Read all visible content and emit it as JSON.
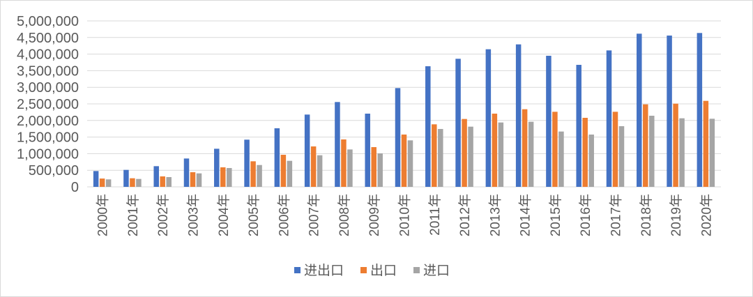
{
  "chart_data": {
    "type": "bar",
    "title": "",
    "xlabel": "",
    "ylabel": "",
    "ylim": [
      0,
      5000000
    ],
    "yticks": [
      0,
      500000,
      1000000,
      1500000,
      2000000,
      2500000,
      3000000,
      3500000,
      4000000,
      4500000,
      5000000
    ],
    "ytick_labels": [
      "0",
      "500,000",
      "1,000,000",
      "1,500,000",
      "2,000,000",
      "2,500,000",
      "3,000,000",
      "3,500,000",
      "4,000,000",
      "4,500,000",
      "5,000,000"
    ],
    "grid": true,
    "legend_position": "bottom",
    "categories": [
      "2000年",
      "2001年",
      "2002年",
      "2003年",
      "2004年",
      "2005年",
      "2006年",
      "2007年",
      "2008年",
      "2009年",
      "2010年",
      "2011年",
      "2012年",
      "2013年",
      "2014年",
      "2015年",
      "2016年",
      "2017年",
      "2018年",
      "2019年",
      "2020年"
    ],
    "series": [
      {
        "name": "进出口",
        "color": "#4472c4",
        "values": [
          476000,
          511000,
          623000,
          854000,
          1148000,
          1422000,
          1765000,
          2178000,
          2556000,
          2206000,
          2976000,
          3634000,
          3859000,
          4146000,
          4293000,
          3950000,
          3676000,
          4111000,
          4615000,
          4559000,
          4636000
        ]
      },
      {
        "name": "出口",
        "color": "#ed7d31",
        "values": [
          250000,
          259000,
          315000,
          441000,
          588000,
          770000,
          966000,
          1218000,
          1429000,
          1197000,
          1576000,
          1884000,
          2045000,
          2206000,
          2339000,
          2262000,
          2080000,
          2262000,
          2486000,
          2507000,
          2591000
        ]
      },
      {
        "name": "进口",
        "color": "#a5a5a5",
        "values": [
          225000,
          238000,
          294000,
          406000,
          567000,
          658000,
          784000,
          952000,
          1127000,
          1008000,
          1401000,
          1744000,
          1814000,
          1940000,
          1961000,
          1667000,
          1576000,
          1828000,
          2143000,
          2066000,
          2052000
        ]
      }
    ]
  }
}
